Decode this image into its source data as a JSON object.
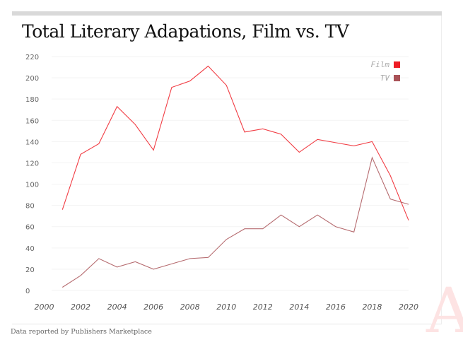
{
  "title": "Total Literary Adapations, Film vs. TV",
  "footer": "Data reported by Publishers Marketplace",
  "watermark": "A",
  "chart_data": {
    "type": "line",
    "title": "Total Literary Adapations, Film vs. TV",
    "xlabel": "",
    "ylabel": "",
    "xlim": [
      2000,
      2020
    ],
    "ylim": [
      0,
      220
    ],
    "x_ticks": [
      "2000",
      "2002",
      "2004",
      "2006",
      "2008",
      "2010",
      "2012",
      "2014",
      "2016",
      "2018",
      "2020"
    ],
    "y_ticks": [
      "0",
      "20",
      "40",
      "60",
      "80",
      "100",
      "120",
      "140",
      "160",
      "180",
      "200",
      "220"
    ],
    "grid": true,
    "legend_placement": "top-right",
    "x": [
      2001,
      2002,
      2003,
      2004,
      2005,
      2006,
      2007,
      2008,
      2009,
      2010,
      2011,
      2012,
      2013,
      2014,
      2015,
      2016,
      2017,
      2018,
      2019,
      2020
    ],
    "series": [
      {
        "name": "Film",
        "color": "#ee1c25",
        "values": [
          76,
          128,
          138,
          173,
          156,
          132,
          191,
          197,
          211,
          193,
          149,
          152,
          147,
          130,
          142,
          139,
          136,
          140,
          108,
          66
        ]
      },
      {
        "name": "TV",
        "color": "#a95257",
        "values": [
          3,
          14,
          30,
          22,
          27,
          20,
          25,
          30,
          31,
          48,
          58,
          58,
          71,
          60,
          71,
          60,
          55,
          125,
          86,
          81
        ]
      }
    ]
  }
}
